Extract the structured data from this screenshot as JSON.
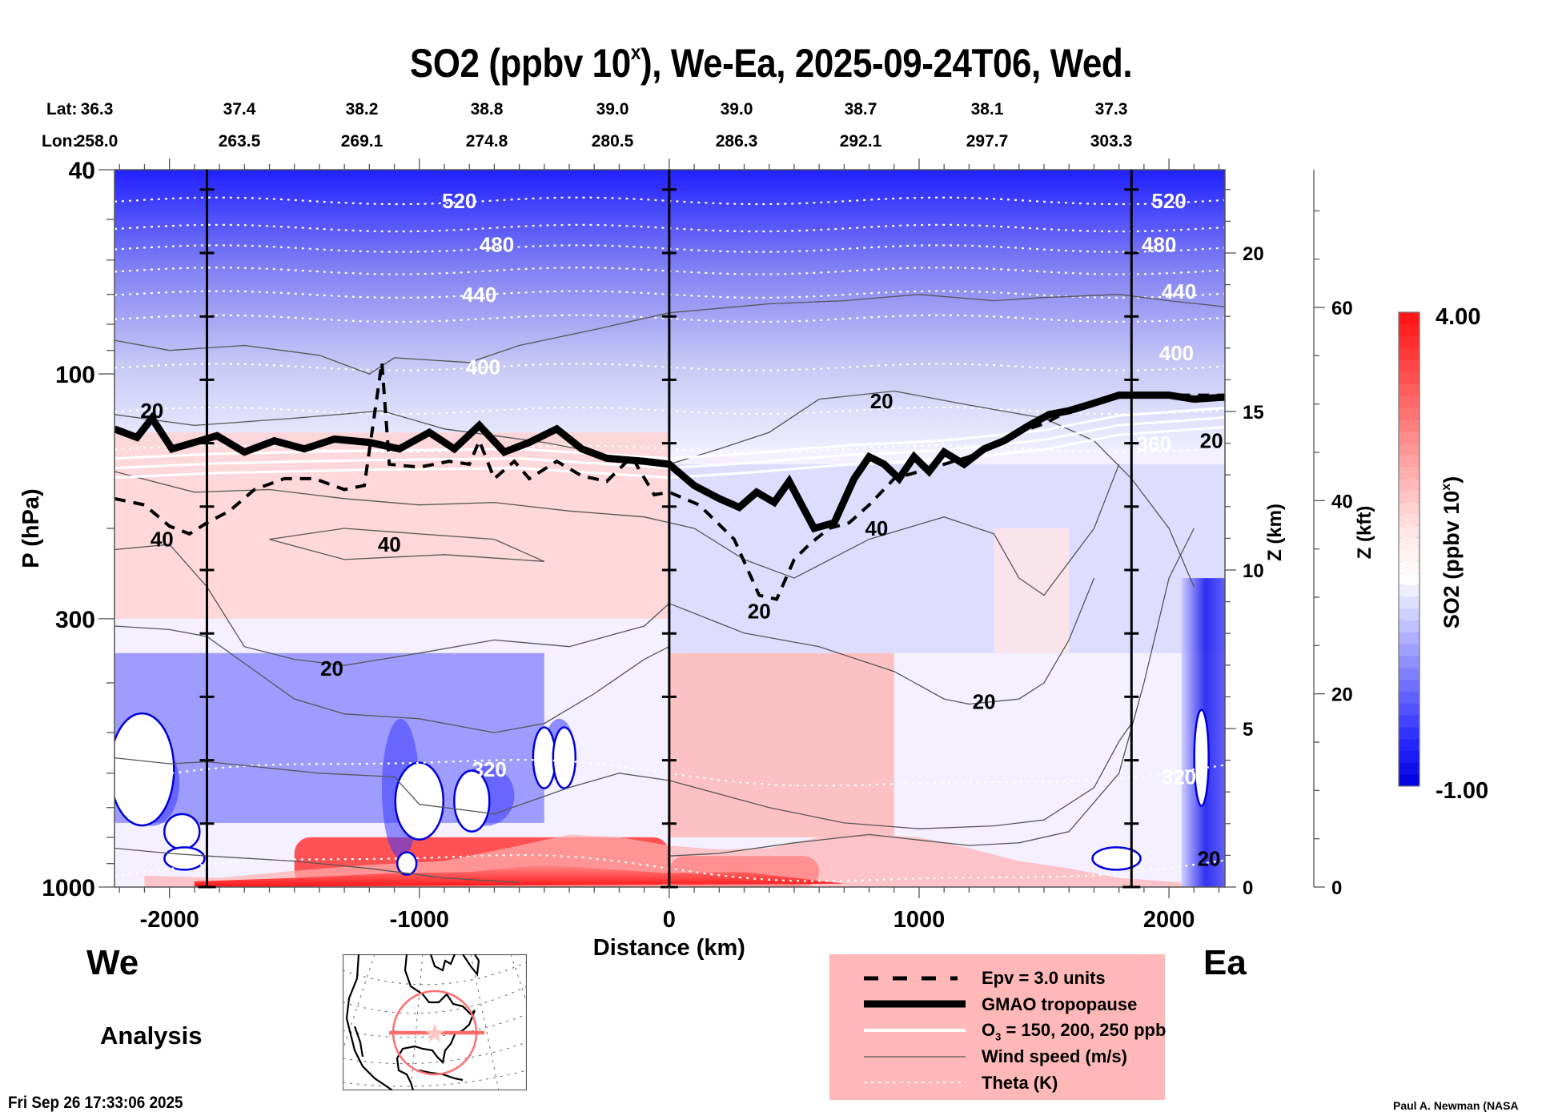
{
  "title": {
    "prefix": "SO2 (ppbv 10",
    "sup": "x",
    "suffix": "), We-Ea, 2025-09-24T06, Wed."
  },
  "lat_label": "Lat:",
  "lon_label": "Lon:",
  "lat_values": [
    "36.3",
    "37.4",
    "38.2",
    "38.8",
    "39.0",
    "39.0",
    "38.7",
    "38.1",
    "37.3"
  ],
  "lon_values": [
    "258.0",
    "263.5",
    "269.1",
    "274.8",
    "280.5",
    "286.3",
    "292.1",
    "297.7",
    "303.3"
  ],
  "left_end_label": "We",
  "right_end_label": "Ea",
  "analysis_label": "Analysis",
  "timestamp": "Fri Sep 26 17:33:06 2025",
  "credit": "Paul A. Newman (NASA",
  "legend": {
    "items": [
      {
        "style": "dashed",
        "label": "Epv = 3.0 units"
      },
      {
        "style": "thick",
        "label": "GMAO tropopause"
      },
      {
        "style": "white",
        "label_prefix": "O",
        "label_sub": "3",
        "label_suffix": " = 150, 200, 250 ppb"
      },
      {
        "style": "thin",
        "label": "Wind speed (m/s)"
      },
      {
        "style": "dotted",
        "label": "Theta (K)"
      }
    ]
  },
  "chart_data": {
    "type": "heatmap",
    "title": "SO2 (ppbv 10^x), We-Ea, 2025-09-24T06, Wed.",
    "xlabel": "Distance (km)",
    "ylabel": "P (hPa)",
    "y2label": "Z (km)",
    "y3label": "Z (kft)",
    "xlim": [
      -2220,
      2224
    ],
    "ylim": [
      1000,
      40
    ],
    "yscale": "log",
    "x_ticks": [
      -2000,
      -1000,
      0,
      1000,
      2000
    ],
    "x_tick_labels": [
      "-2000",
      "-1000",
      "0",
      "1000",
      "2000"
    ],
    "y_ticks": [
      40,
      100,
      300,
      1000
    ],
    "y_tick_labels": [
      "40",
      "100",
      "300",
      "1000"
    ],
    "z_km_ticks": [
      0,
      5,
      10,
      15,
      20
    ],
    "z_kft_ticks": [
      0,
      20,
      40,
      60
    ],
    "vertical_markers_km": [
      -1850,
      0,
      1850
    ],
    "colorbar": {
      "label_prefix": "SO2 (ppbv 10",
      "label_sup": "x",
      "label_suffix": ")",
      "min": -1.0,
      "max": 4.0,
      "min_label": "-1.00",
      "max_label": "4.00",
      "low_color": "#0000dd",
      "mid_color": "#ffffff",
      "high_color": "#ff1010",
      "levels": 40
    },
    "field_regions": [
      {
        "name": "upper-stratosphere",
        "x": [
          -2220,
          2224
        ],
        "p": [
          40,
          80
        ],
        "value": -0.7
      },
      {
        "name": "lower-stratosphere",
        "x": [
          -2220,
          2224
        ],
        "p": [
          80,
          130
        ],
        "value": 0.3
      },
      {
        "name": "utls-west",
        "x": [
          -2220,
          0
        ],
        "p": [
          130,
          300
        ],
        "value": 1.9
      },
      {
        "name": "ut-east",
        "x": [
          0,
          2224
        ],
        "p": [
          150,
          350
        ],
        "value": 0.9
      },
      {
        "name": "mid-trop-west",
        "x": [
          -2220,
          -500
        ],
        "p": [
          350,
          750
        ],
        "value": 0.3
      },
      {
        "name": "mid-trop-center",
        "x": [
          0,
          900
        ],
        "p": [
          350,
          800
        ],
        "value": 2.2
      },
      {
        "name": "boundary-layer-west",
        "x": [
          -1500,
          0
        ],
        "p": [
          800,
          1000
        ],
        "value": 3.6
      },
      {
        "name": "boundary-layer-center",
        "x": [
          0,
          600
        ],
        "p": [
          870,
          1000
        ],
        "value": 3.8
      },
      {
        "name": "east-column",
        "x": [
          2050,
          2224
        ],
        "p": [
          250,
          1000
        ],
        "value": -0.9
      }
    ],
    "theta_labels": [
      {
        "value": "520",
        "x": -840,
        "p": 46
      },
      {
        "value": "480",
        "x": -690,
        "p": 56
      },
      {
        "value": "440",
        "x": -760,
        "p": 70
      },
      {
        "value": "400",
        "x": -745,
        "p": 97
      },
      {
        "value": "520",
        "x": 2000,
        "p": 46
      },
      {
        "value": "480",
        "x": 1960,
        "p": 56
      },
      {
        "value": "440",
        "x": 2040,
        "p": 69
      },
      {
        "value": "400",
        "x": 2030,
        "p": 91
      },
      {
        "value": "360",
        "x": 1940,
        "p": 137
      },
      {
        "value": "320",
        "x": -720,
        "p": 590
      },
      {
        "value": "320",
        "x": 2040,
        "p": 610
      }
    ],
    "theta_levels_p": [
      46,
      52,
      57,
      63,
      70,
      78,
      97,
      118,
      140,
      600,
      920
    ],
    "wind_labels": [
      {
        "value": "20",
        "x": -2070,
        "p": 118
      },
      {
        "value": "40",
        "x": -2030,
        "p": 210
      },
      {
        "value": "40",
        "x": -1120,
        "p": 215
      },
      {
        "value": "20",
        "x": -1350,
        "p": 375
      },
      {
        "value": "20",
        "x": 850,
        "p": 113
      },
      {
        "value": "40",
        "x": 830,
        "p": 200
      },
      {
        "value": "20",
        "x": 360,
        "p": 290
      },
      {
        "value": "20",
        "x": 1260,
        "p": 435
      },
      {
        "value": "20",
        "x": 2170,
        "p": 135
      },
      {
        "value": "20",
        "x": 2160,
        "p": 880
      }
    ],
    "tropopause_p": [
      [
        -2220,
        128
      ],
      [
        -2130,
        133
      ],
      [
        -2070,
        122
      ],
      [
        -1990,
        140
      ],
      [
        -1900,
        136
      ],
      [
        -1810,
        132
      ],
      [
        -1700,
        142
      ],
      [
        -1580,
        135
      ],
      [
        -1460,
        140
      ],
      [
        -1340,
        134
      ],
      [
        -1200,
        136
      ],
      [
        -1080,
        140
      ],
      [
        -960,
        130
      ],
      [
        -860,
        140
      ],
      [
        -760,
        126
      ],
      [
        -660,
        142
      ],
      [
        -560,
        136
      ],
      [
        -450,
        128
      ],
      [
        -350,
        140
      ],
      [
        -250,
        146
      ],
      [
        -100,
        148
      ],
      [
        0,
        150
      ],
      [
        100,
        165
      ],
      [
        200,
        175
      ],
      [
        280,
        182
      ],
      [
        350,
        170
      ],
      [
        420,
        178
      ],
      [
        480,
        162
      ],
      [
        580,
        200
      ],
      [
        660,
        195
      ],
      [
        740,
        160
      ],
      [
        800,
        145
      ],
      [
        860,
        150
      ],
      [
        920,
        160
      ],
      [
        980,
        145
      ],
      [
        1040,
        155
      ],
      [
        1100,
        142
      ],
      [
        1180,
        150
      ],
      [
        1260,
        140
      ],
      [
        1340,
        135
      ],
      [
        1440,
        126
      ],
      [
        1520,
        120
      ],
      [
        1600,
        118
      ],
      [
        1700,
        114
      ],
      [
        1800,
        110
      ],
      [
        1900,
        110
      ],
      [
        2000,
        110
      ],
      [
        2100,
        112
      ],
      [
        2224,
        111
      ]
    ],
    "epv_p": [
      [
        -2220,
        175
      ],
      [
        -2100,
        180
      ],
      [
        -2000,
        198
      ],
      [
        -1920,
        205
      ],
      [
        -1850,
        195
      ],
      [
        -1760,
        185
      ],
      [
        -1660,
        168
      ],
      [
        -1540,
        160
      ],
      [
        -1420,
        160
      ],
      [
        -1300,
        168
      ],
      [
        -1220,
        165
      ],
      [
        -1150,
        95
      ],
      [
        -1120,
        150
      ],
      [
        -1000,
        152
      ],
      [
        -880,
        148
      ],
      [
        -800,
        150
      ],
      [
        -760,
        135
      ],
      [
        -700,
        160
      ],
      [
        -620,
        148
      ],
      [
        -560,
        160
      ],
      [
        -450,
        148
      ],
      [
        -350,
        158
      ],
      [
        -250,
        162
      ],
      [
        -150,
        145
      ],
      [
        -60,
        172
      ],
      [
        0,
        170
      ],
      [
        120,
        180
      ],
      [
        260,
        210
      ],
      [
        360,
        270
      ],
      [
        430,
        275
      ],
      [
        500,
        230
      ],
      [
        560,
        215
      ],
      [
        640,
        200
      ],
      [
        720,
        195
      ],
      [
        800,
        180
      ],
      [
        900,
        160
      ],
      [
        1000,
        155
      ],
      [
        1100,
        150
      ],
      [
        1200,
        145
      ],
      [
        1400,
        130
      ],
      [
        1500,
        125
      ],
      [
        1600,
        118
      ],
      [
        1800,
        110
      ],
      [
        2224,
        110
      ]
    ],
    "o3_contour_p": [
      [
        -2220,
        143
      ],
      [
        -1800,
        140
      ],
      [
        -1200,
        138
      ],
      [
        -600,
        137
      ],
      [
        0,
        143
      ],
      [
        300,
        140
      ],
      [
        700,
        135
      ],
      [
        1100,
        132
      ],
      [
        1500,
        126
      ],
      [
        1800,
        118
      ],
      [
        2224,
        114
      ]
    ]
  },
  "scale_axis_label": "Z (kft)"
}
